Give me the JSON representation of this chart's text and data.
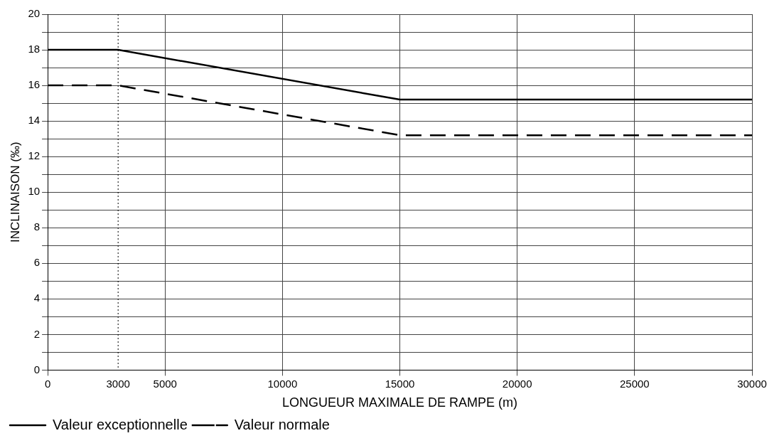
{
  "chart_data": {
    "type": "line",
    "xlabel": "LONGUEUR MAXIMALE DE RAMPE (m)",
    "ylabel": "INCLINAISON (‰)",
    "x": [
      0,
      3000,
      15000,
      30000
    ],
    "series": [
      {
        "name": "Valeur exceptionnelle",
        "color": "#000000",
        "values": [
          18,
          18,
          15.2,
          15.2
        ],
        "line_style": "solid"
      },
      {
        "name": "Valeur normale",
        "color": "#000000",
        "values": [
          16,
          16,
          13.2,
          13.2
        ],
        "line_style": "dashed"
      }
    ],
    "xlim": [
      0,
      30000
    ],
    "xticks": [
      0,
      3000,
      5000,
      10000,
      15000,
      20000,
      25000,
      30000
    ],
    "ylim": [
      0,
      20
    ],
    "yticks": [
      0,
      {
        "value": 1,
        "label": null
      },
      2,
      {
        "value": 3,
        "label": null
      },
      4,
      {
        "value": 5,
        "label": null
      },
      6,
      {
        "value": 7,
        "label": null
      },
      8,
      {
        "value": 9,
        "label": null
      },
      10,
      {
        "value": 11,
        "label": null
      },
      12,
      {
        "value": 13,
        "label": null
      },
      14,
      {
        "value": 15,
        "label": null
      },
      16,
      {
        "value": 17,
        "label": null
      },
      18,
      {
        "value": 19,
        "label": null
      },
      20
    ],
    "ref_lines": [
      {
        "axis": "x",
        "value": 3000,
        "line_style": "dotted"
      }
    ],
    "grid": true,
    "legend": "bottom left",
    "marker": "none"
  }
}
